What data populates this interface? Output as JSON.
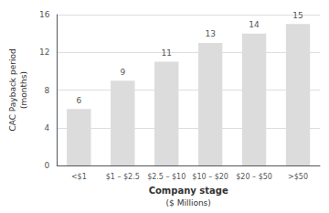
{
  "chart_data": {
    "type": "bar",
    "categories": [
      "<$1",
      "$1 – $2.5",
      "$2.5 – $10",
      "$10 – $20",
      "$20 – $50",
      ">​$50"
    ],
    "values": [
      6,
      9,
      11,
      13,
      14,
      15
    ],
    "color": "#dcdcdc",
    "ylabel": "CAC Payback period\n(months)",
    "xlabel": "Company stage\n($ Millions)",
    "ylim": [
      0,
      16
    ],
    "yticks": [
      0,
      4,
      8,
      12,
      16
    ],
    "grid": true,
    "data_labels": true
  }
}
